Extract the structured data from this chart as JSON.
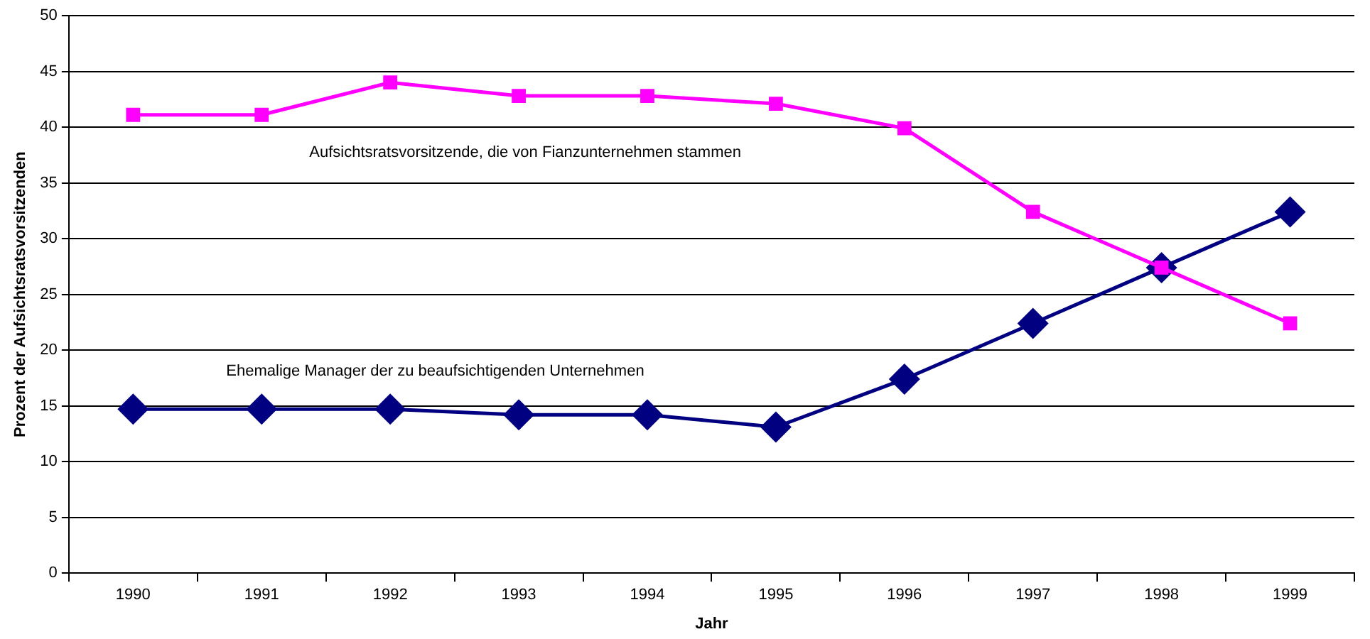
{
  "chart_data": {
    "type": "line",
    "xlabel": "Jahr",
    "ylabel": "Prozent der Aufsichtsratsvorsitzenden",
    "categories": [
      "1990",
      "1991",
      "1992",
      "1993",
      "1994",
      "1995",
      "1996",
      "1997",
      "1998",
      "1999"
    ],
    "series": [
      {
        "name": "Aufsichtsratsvorsitzende, die von Fianzunternehmen stammen",
        "color": "#ff00ff",
        "marker": "square",
        "values": [
          41.1,
          41.1,
          44.0,
          42.8,
          42.8,
          42.1,
          39.9,
          32.4,
          27.4,
          22.4
        ]
      },
      {
        "name": "Ehemalige Manager der zu beaufsichtigenden Unternehmen",
        "color": "#000080",
        "marker": "diamond",
        "values": [
          14.7,
          14.7,
          14.7,
          14.2,
          14.2,
          13.1,
          17.4,
          22.4,
          27.4,
          32.4
        ]
      }
    ],
    "ylim": [
      0,
      50
    ],
    "yticks": [
      0,
      5,
      10,
      15,
      20,
      25,
      30,
      35,
      40,
      45,
      50
    ],
    "grid": "y",
    "legend": false,
    "line_style": "solid"
  }
}
